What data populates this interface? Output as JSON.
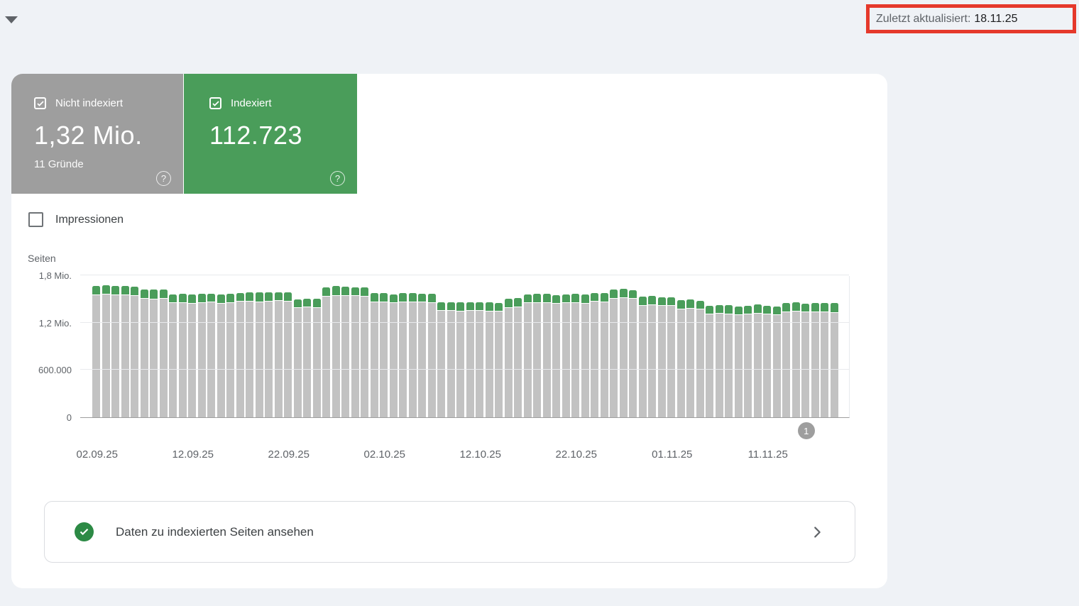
{
  "page": {
    "background_color": "#eff2f6",
    "header": {
      "last_updated_label": "Zuletzt aktualisiert:",
      "last_updated_value": "18.11.25",
      "annotation_color": "#e5392b"
    }
  },
  "summary_cards": {
    "not_indexed": {
      "label": "Nicht indexiert",
      "value": "1,32 Mio.",
      "subtext": "11 Gründe",
      "color": "#9e9e9e",
      "checked": true,
      "help_glyph": "?"
    },
    "indexed": {
      "label": "Indexiert",
      "value": "112.723",
      "color": "#4a9d5a",
      "checked": true,
      "help_glyph": "?"
    }
  },
  "impressions_toggle": {
    "label": "Impressionen",
    "checked": false
  },
  "chart_data": {
    "type": "bar",
    "stacked": true,
    "ylabel": "Seiten",
    "ylim": [
      0,
      1800000
    ],
    "grid": true,
    "legend_position": "none",
    "y_ticks": [
      {
        "value": 0,
        "label": "0"
      },
      {
        "value": 600000,
        "label": "600.000"
      },
      {
        "value": 1200000,
        "label": "1,2 Mio."
      },
      {
        "value": 1800000,
        "label": "1,8 Mio."
      }
    ],
    "x_ticks": [
      {
        "bar_index": 0,
        "label": "02.09.25"
      },
      {
        "bar_index": 10,
        "label": "12.09.25"
      },
      {
        "bar_index": 20,
        "label": "22.09.25"
      },
      {
        "bar_index": 30,
        "label": "02.10.25"
      },
      {
        "bar_index": 40,
        "label": "12.10.25"
      },
      {
        "bar_index": 50,
        "label": "22.10.25"
      },
      {
        "bar_index": 60,
        "label": "01.11.25"
      },
      {
        "bar_index": 70,
        "label": "11.11.25"
      }
    ],
    "series": [
      {
        "name": "Nicht indexiert",
        "color": "#c2c2c2",
        "values": [
          1550000,
          1558000,
          1552000,
          1546000,
          1540000,
          1500000,
          1495000,
          1502000,
          1448000,
          1452000,
          1443000,
          1450000,
          1455000,
          1444000,
          1449000,
          1466000,
          1471000,
          1462000,
          1468000,
          1472000,
          1465000,
          1387000,
          1392000,
          1385000,
          1532000,
          1538000,
          1543000,
          1536000,
          1530000,
          1456000,
          1461000,
          1452000,
          1457000,
          1460000,
          1454000,
          1450000,
          1346000,
          1351000,
          1342000,
          1347000,
          1352000,
          1344000,
          1340000,
          1386000,
          1391000,
          1447000,
          1452000,
          1446000,
          1441000,
          1451000,
          1445000,
          1440000,
          1466000,
          1461000,
          1506000,
          1512000,
          1505000,
          1416000,
          1421000,
          1415000,
          1410000,
          1371000,
          1376000,
          1370000,
          1306000,
          1311000,
          1305000,
          1300000,
          1306000,
          1311000,
          1304000,
          1299000,
          1336000,
          1341000,
          1334000,
          1330000,
          1336000,
          1320000
        ]
      },
      {
        "name": "Indexiert",
        "color": "#4a9d5a",
        "values": [
          108000,
          112000,
          105000,
          110000,
          104000,
          109000,
          113000,
          106000,
          102000,
          108000,
          111000,
          104000,
          99000,
          107000,
          112000,
          103000,
          108000,
          114000,
          105000,
          100000,
          109000,
          103000,
          97000,
          105000,
          110000,
          114000,
          107000,
          101000,
          108000,
          112000,
          104000,
          98000,
          106000,
          111000,
          103000,
          108000,
          96000,
          101000,
          105000,
          99000,
          103000,
          107000,
          100000,
          104000,
          109000,
          102000,
          106000,
          110000,
          103000,
          98000,
          105000,
          109000,
          102000,
          107000,
          111000,
          104000,
          100000,
          106000,
          110000,
          103000,
          98000,
          104000,
          108000,
          101000,
          96000,
          102000,
          106000,
          99000,
          103000,
          108000,
          101000,
          97000,
          104000,
          108000,
          102000,
          106000,
          110000,
          112723
        ]
      }
    ],
    "annotation_marker": {
      "label": "1",
      "bar_index": 74
    }
  },
  "action_bar": {
    "label": "Daten zu indexierten Seiten ansehen"
  },
  "icons": {
    "expander": "triangle-down",
    "card_checkbox": "checked-checkbox",
    "help": "help-circle",
    "action_check": "check-circle",
    "action_chevron": "chevron-right",
    "marker": "numbered-annotation"
  }
}
